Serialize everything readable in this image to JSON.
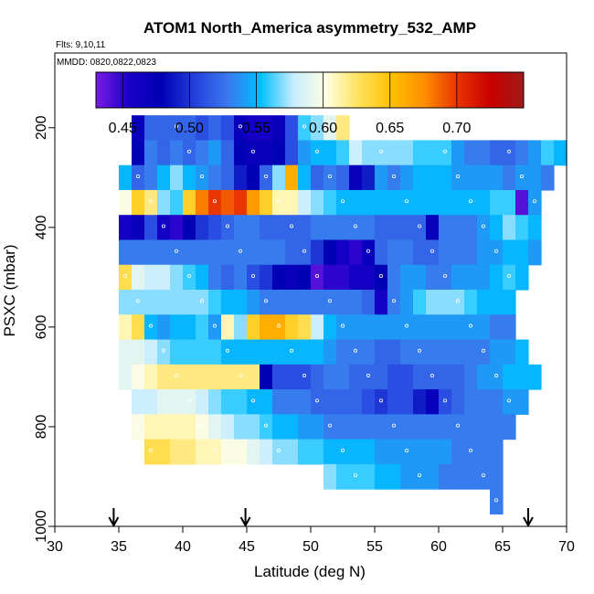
{
  "chart_data": {
    "type": "heatmap",
    "title": "ATOM1 North_America asymmetry_532_AMP",
    "flights_label": "Flts: 9,10,11",
    "dates_label": "MMDD: 0820,0822,0823",
    "xlabel": "Latitude (deg N)",
    "ylabel": "PSXC (mbar)",
    "xlim": [
      30,
      70
    ],
    "ylim": [
      1000,
      50
    ],
    "y_reversed": true,
    "x_ticks": [
      "30",
      "35",
      "40",
      "45",
      "50",
      "55",
      "60",
      "65",
      "70"
    ],
    "y_ticks": [
      "200",
      "400",
      "600",
      "800",
      "1000"
    ],
    "colorbar": {
      "range": [
        0.43,
        0.75
      ],
      "ticks": [
        "0.45",
        "0.50",
        "0.55",
        "0.60",
        "0.65",
        "0.70"
      ]
    },
    "flight_markers_lat": [
      34.6,
      44.9,
      67.0
    ],
    "lat_bins": [
      34,
      35,
      36,
      37,
      38,
      39,
      40,
      41,
      42,
      43,
      44,
      45,
      46,
      47,
      48,
      49,
      50,
      51,
      52,
      53,
      54,
      55,
      56,
      57,
      58,
      59,
      60,
      61,
      62,
      63,
      64,
      65,
      66,
      67,
      68,
      69
    ],
    "pressure_levels": [
      200,
      250,
      300,
      350,
      400,
      450,
      500,
      550,
      600,
      650,
      700,
      750,
      800,
      850,
      900,
      950
    ],
    "values": [
      [
        null,
        null,
        0.47,
        0.52,
        0.52,
        0.52,
        0.52,
        0.51,
        0.52,
        0.51,
        0.47,
        0.46,
        0.46,
        0.47,
        0.51,
        0.56,
        0.57,
        0.59,
        0.62,
        null,
        null,
        null,
        null,
        null,
        null,
        null,
        null,
        null,
        null,
        null,
        null,
        null,
        null,
        null,
        null,
        null
      ],
      [
        null,
        null,
        0.48,
        0.53,
        0.52,
        0.53,
        0.52,
        0.53,
        0.54,
        0.52,
        0.48,
        0.47,
        0.47,
        0.48,
        0.51,
        0.54,
        0.55,
        0.55,
        0.56,
        0.58,
        0.57,
        0.57,
        0.57,
        0.57,
        0.56,
        0.56,
        0.56,
        0.54,
        0.53,
        0.53,
        0.52,
        0.52,
        0.53,
        0.54,
        0.56,
        0.55
      ],
      [
        null,
        0.55,
        0.52,
        0.53,
        0.55,
        0.57,
        0.55,
        0.54,
        0.53,
        0.52,
        0.49,
        0.48,
        0.52,
        0.57,
        0.66,
        0.55,
        0.52,
        0.53,
        0.52,
        0.47,
        0.49,
        0.54,
        0.53,
        0.54,
        0.55,
        0.55,
        0.55,
        0.54,
        0.54,
        0.54,
        0.54,
        0.53,
        0.54,
        0.54,
        0.53,
        null
      ],
      [
        null,
        0.6,
        0.64,
        0.62,
        0.57,
        0.56,
        0.64,
        0.68,
        0.7,
        0.69,
        0.7,
        0.67,
        0.64,
        0.61,
        0.61,
        0.58,
        0.57,
        0.56,
        0.55,
        0.55,
        0.55,
        0.55,
        0.55,
        0.55,
        0.55,
        0.55,
        0.55,
        0.55,
        0.55,
        0.55,
        0.56,
        0.56,
        0.44,
        0.54,
        null,
        null
      ],
      [
        null,
        0.46,
        0.47,
        0.51,
        0.46,
        0.45,
        0.48,
        0.5,
        0.51,
        0.52,
        0.53,
        0.53,
        0.52,
        0.52,
        0.52,
        0.52,
        0.53,
        0.53,
        0.53,
        0.53,
        0.53,
        0.52,
        0.52,
        0.52,
        0.52,
        0.47,
        0.53,
        0.53,
        0.53,
        0.54,
        0.55,
        0.57,
        0.56,
        0.55,
        null,
        null
      ],
      [
        null,
        0.53,
        0.53,
        0.53,
        0.53,
        0.53,
        0.53,
        0.53,
        0.53,
        0.53,
        0.53,
        0.53,
        0.53,
        0.53,
        0.52,
        0.52,
        0.5,
        0.48,
        0.46,
        0.45,
        0.47,
        0.52,
        0.53,
        0.53,
        0.52,
        0.52,
        0.53,
        0.53,
        0.53,
        0.54,
        0.54,
        0.55,
        0.55,
        0.54,
        null,
        null
      ],
      [
        null,
        0.63,
        0.59,
        0.58,
        0.58,
        0.57,
        0.56,
        0.55,
        0.53,
        0.52,
        0.53,
        0.51,
        0.5,
        0.48,
        0.47,
        0.48,
        0.44,
        0.45,
        0.45,
        0.46,
        0.46,
        0.48,
        0.53,
        0.54,
        0.54,
        0.53,
        0.53,
        0.54,
        0.54,
        0.54,
        0.55,
        0.56,
        0.55,
        null,
        null,
        null
      ],
      [
        null,
        0.57,
        0.57,
        0.57,
        0.57,
        0.57,
        0.57,
        0.57,
        0.56,
        0.55,
        0.55,
        0.54,
        0.53,
        0.53,
        0.53,
        0.53,
        0.53,
        0.53,
        0.53,
        0.53,
        0.52,
        0.46,
        0.53,
        0.54,
        0.56,
        0.57,
        0.57,
        0.57,
        0.56,
        0.55,
        0.55,
        0.55,
        null,
        null,
        null,
        null
      ],
      [
        null,
        0.61,
        0.63,
        0.55,
        0.54,
        0.55,
        0.55,
        0.56,
        0.54,
        0.61,
        0.57,
        0.64,
        0.66,
        0.66,
        0.64,
        0.63,
        0.58,
        0.55,
        0.54,
        0.54,
        0.54,
        0.54,
        0.54,
        0.54,
        0.54,
        0.54,
        0.54,
        0.54,
        0.54,
        0.54,
        0.53,
        0.53,
        null,
        null,
        null,
        null
      ],
      [
        null,
        0.59,
        0.59,
        0.58,
        0.57,
        0.56,
        0.56,
        0.56,
        0.56,
        0.55,
        0.55,
        0.55,
        0.55,
        0.55,
        0.55,
        0.55,
        0.55,
        0.54,
        0.53,
        0.53,
        0.53,
        0.52,
        0.52,
        0.53,
        0.53,
        0.53,
        0.53,
        0.53,
        0.53,
        0.53,
        0.54,
        0.54,
        0.55,
        null,
        null,
        null
      ],
      [
        null,
        0.59,
        0.6,
        0.61,
        0.62,
        0.62,
        0.62,
        0.62,
        0.62,
        0.62,
        0.62,
        0.62,
        0.48,
        0.51,
        0.51,
        0.51,
        0.52,
        0.53,
        0.53,
        0.52,
        0.52,
        0.52,
        0.51,
        0.51,
        0.52,
        0.52,
        0.52,
        0.52,
        0.53,
        0.54,
        0.54,
        0.55,
        0.55,
        0.55,
        null,
        null
      ],
      [
        null,
        null,
        0.58,
        0.58,
        0.59,
        0.59,
        0.59,
        0.58,
        0.57,
        0.56,
        0.56,
        0.55,
        0.55,
        0.53,
        0.53,
        0.53,
        0.52,
        0.52,
        0.52,
        0.52,
        0.51,
        0.5,
        0.51,
        0.51,
        0.49,
        0.47,
        0.51,
        0.52,
        0.53,
        0.53,
        0.53,
        0.54,
        0.54,
        null,
        null,
        null
      ],
      [
        null,
        null,
        0.6,
        0.61,
        0.61,
        0.61,
        0.61,
        0.6,
        0.59,
        0.58,
        0.57,
        0.57,
        0.56,
        0.55,
        0.55,
        0.54,
        0.54,
        0.53,
        0.53,
        0.53,
        0.53,
        0.53,
        0.53,
        0.53,
        0.53,
        0.53,
        0.53,
        0.53,
        0.53,
        0.53,
        0.53,
        0.53,
        null,
        null,
        null,
        null
      ],
      [
        null,
        null,
        null,
        0.63,
        0.63,
        0.62,
        0.62,
        0.61,
        0.61,
        0.6,
        0.6,
        0.59,
        0.58,
        0.57,
        0.57,
        0.56,
        0.56,
        0.55,
        0.55,
        0.55,
        0.55,
        0.54,
        0.54,
        0.54,
        0.54,
        0.54,
        0.54,
        0.53,
        0.53,
        0.53,
        0.53,
        null,
        null,
        null,
        null,
        null
      ],
      [
        null,
        null,
        null,
        null,
        null,
        null,
        null,
        null,
        null,
        null,
        null,
        null,
        null,
        null,
        null,
        null,
        null,
        0.57,
        0.56,
        0.56,
        0.56,
        0.55,
        0.55,
        0.54,
        0.54,
        0.54,
        0.53,
        0.53,
        0.53,
        0.53,
        0.53,
        null,
        null,
        null,
        null,
        null
      ],
      [
        null,
        null,
        null,
        null,
        null,
        null,
        null,
        null,
        null,
        null,
        null,
        null,
        null,
        null,
        null,
        null,
        null,
        null,
        null,
        null,
        null,
        null,
        null,
        null,
        null,
        null,
        null,
        null,
        null,
        null,
        0.53,
        null,
        null,
        null,
        null,
        null
      ]
    ],
    "colors": {
      "scale": [
        "#7a1ce6",
        "#1900c8",
        "#0000b4",
        "#2440dc",
        "#3a78ee",
        "#00bfff",
        "#c8ecff",
        "#ffffe0",
        "#ffe15a",
        "#ffc000",
        "#ff8c00",
        "#e83200",
        "#c80000",
        "#a01a1a"
      ],
      "marker": "#ffffff",
      "axis": "#000000"
    }
  }
}
